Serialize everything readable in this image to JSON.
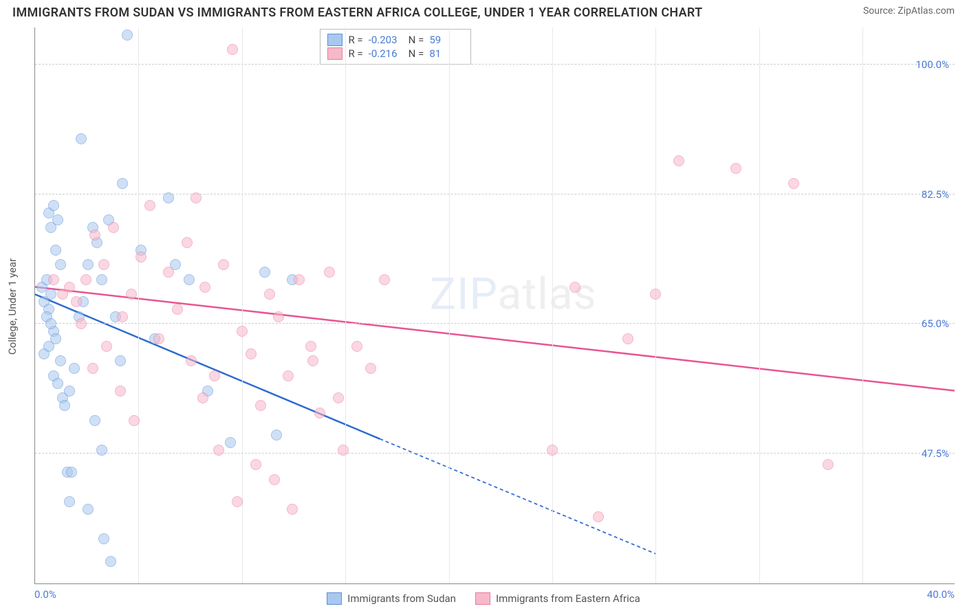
{
  "title": "IMMIGRANTS FROM SUDAN VS IMMIGRANTS FROM EASTERN AFRICA COLLEGE, UNDER 1 YEAR CORRELATION CHART",
  "source": "Source: ZipAtlas.com",
  "watermark_zip": "ZIP",
  "watermark_atlas": "atlas",
  "ylabel": "College, Under 1 year",
  "chart": {
    "type": "scatter",
    "xlim": [
      0,
      40
    ],
    "ylim": [
      30,
      105
    ],
    "x_ticks": [
      0,
      40
    ],
    "x_tick_labels": [
      "0.0%",
      "40.0%"
    ],
    "x_minor_ticks": [
      4.5,
      9,
      13.5,
      18,
      22.5,
      27,
      31.5,
      36
    ],
    "y_ticks": [
      47.5,
      65.0,
      82.5,
      100.0
    ],
    "y_tick_labels": [
      "47.5%",
      "65.0%",
      "82.5%",
      "100.0%"
    ],
    "background_color": "#ffffff",
    "grid_color": "#cccccc",
    "axis_color": "#888888",
    "marker_radius": 8,
    "marker_stroke_width": 1.2,
    "trend_line_width": 2.5
  },
  "series": [
    {
      "name": "Immigrants from Sudan",
      "fill_color": "#a8c8f0",
      "stroke_color": "#5b8fd6",
      "fill_opacity": 0.55,
      "R": "-0.203",
      "N": "59",
      "trend": {
        "x1": 0,
        "y1": 69,
        "x2": 15,
        "y2": 49.5,
        "extend_x2": 27,
        "extend_y2": 34,
        "color": "#2e6bd0"
      },
      "points": [
        [
          0.3,
          70
        ],
        [
          0.4,
          68
        ],
        [
          0.5,
          71
        ],
        [
          0.6,
          67
        ],
        [
          0.7,
          69
        ],
        [
          0.8,
          64
        ],
        [
          0.6,
          80
        ],
        [
          0.7,
          78
        ],
        [
          0.8,
          81
        ],
        [
          0.9,
          75
        ],
        [
          1.0,
          79
        ],
        [
          1.1,
          73
        ],
        [
          0.4,
          61
        ],
        [
          0.6,
          62
        ],
        [
          0.8,
          58
        ],
        [
          1.0,
          57
        ],
        [
          1.2,
          55
        ],
        [
          0.5,
          66
        ],
        [
          0.7,
          65
        ],
        [
          0.9,
          63
        ],
        [
          1.1,
          60
        ],
        [
          1.3,
          54
        ],
        [
          1.5,
          56
        ],
        [
          1.7,
          59
        ],
        [
          1.9,
          66
        ],
        [
          2.1,
          68
        ],
        [
          2.3,
          73
        ],
        [
          2.5,
          78
        ],
        [
          2.7,
          76
        ],
        [
          2.9,
          71
        ],
        [
          2.0,
          90
        ],
        [
          3.2,
          79
        ],
        [
          3.5,
          66
        ],
        [
          3.8,
          84
        ],
        [
          1.4,
          45
        ],
        [
          1.6,
          45
        ],
        [
          1.5,
          41
        ],
        [
          2.3,
          40
        ],
        [
          3.0,
          36
        ],
        [
          3.3,
          33
        ],
        [
          2.6,
          52
        ],
        [
          2.9,
          48
        ],
        [
          3.7,
          60
        ],
        [
          4.0,
          104
        ],
        [
          4.6,
          75
        ],
        [
          5.2,
          63
        ],
        [
          5.8,
          82
        ],
        [
          6.1,
          73
        ],
        [
          6.7,
          71
        ],
        [
          7.5,
          56
        ],
        [
          8.5,
          49
        ],
        [
          10.0,
          72
        ],
        [
          10.5,
          50
        ],
        [
          11.2,
          71
        ]
      ]
    },
    {
      "name": "Immigrants from Eastern Africa",
      "fill_color": "#f7b8c9",
      "stroke_color": "#e87ba0",
      "fill_opacity": 0.55,
      "R": "-0.216",
      "N": "81",
      "trend": {
        "x1": 0,
        "y1": 70,
        "x2": 40,
        "y2": 56,
        "color": "#e85590"
      },
      "points": [
        [
          0.8,
          71
        ],
        [
          1.2,
          69
        ],
        [
          1.5,
          70
        ],
        [
          1.8,
          68
        ],
        [
          2.2,
          71
        ],
        [
          2.6,
          77
        ],
        [
          3.0,
          73
        ],
        [
          3.4,
          78
        ],
        [
          3.8,
          66
        ],
        [
          4.2,
          69
        ],
        [
          4.6,
          74
        ],
        [
          5.0,
          81
        ],
        [
          5.4,
          63
        ],
        [
          5.8,
          72
        ],
        [
          6.2,
          67
        ],
        [
          6.6,
          76
        ],
        [
          7.0,
          82
        ],
        [
          7.4,
          70
        ],
        [
          7.8,
          58
        ],
        [
          8.2,
          73
        ],
        [
          8.6,
          102
        ],
        [
          9.0,
          64
        ],
        [
          9.4,
          61
        ],
        [
          9.8,
          54
        ],
        [
          10.2,
          69
        ],
        [
          10.6,
          66
        ],
        [
          11.0,
          58
        ],
        [
          11.5,
          71
        ],
        [
          12.0,
          62
        ],
        [
          12.4,
          53
        ],
        [
          2.0,
          65
        ],
        [
          2.5,
          59
        ],
        [
          3.1,
          62
        ],
        [
          3.7,
          56
        ],
        [
          4.3,
          52
        ],
        [
          6.8,
          60
        ],
        [
          7.3,
          55
        ],
        [
          8.0,
          48
        ],
        [
          8.8,
          41
        ],
        [
          9.6,
          46
        ],
        [
          10.4,
          44
        ],
        [
          11.2,
          40
        ],
        [
          12.1,
          60
        ],
        [
          12.8,
          72
        ],
        [
          13.4,
          48
        ],
        [
          14.0,
          62
        ],
        [
          14.6,
          59
        ],
        [
          15.2,
          71
        ],
        [
          13.2,
          55
        ],
        [
          22.5,
          48
        ],
        [
          23.5,
          70
        ],
        [
          24.5,
          39
        ],
        [
          25.8,
          63
        ],
        [
          27.0,
          69
        ],
        [
          28.0,
          87
        ],
        [
          30.5,
          86
        ],
        [
          33.0,
          84
        ],
        [
          34.5,
          46
        ]
      ]
    }
  ],
  "stats_labels": {
    "R": "R =",
    "N": "N ="
  },
  "legend_bottom": [
    {
      "label": "Immigrants from Sudan",
      "fill": "#a8c8f0",
      "stroke": "#5b8fd6"
    },
    {
      "label": "Immigrants from Eastern Africa",
      "fill": "#f7b8c9",
      "stroke": "#e87ba0"
    }
  ]
}
